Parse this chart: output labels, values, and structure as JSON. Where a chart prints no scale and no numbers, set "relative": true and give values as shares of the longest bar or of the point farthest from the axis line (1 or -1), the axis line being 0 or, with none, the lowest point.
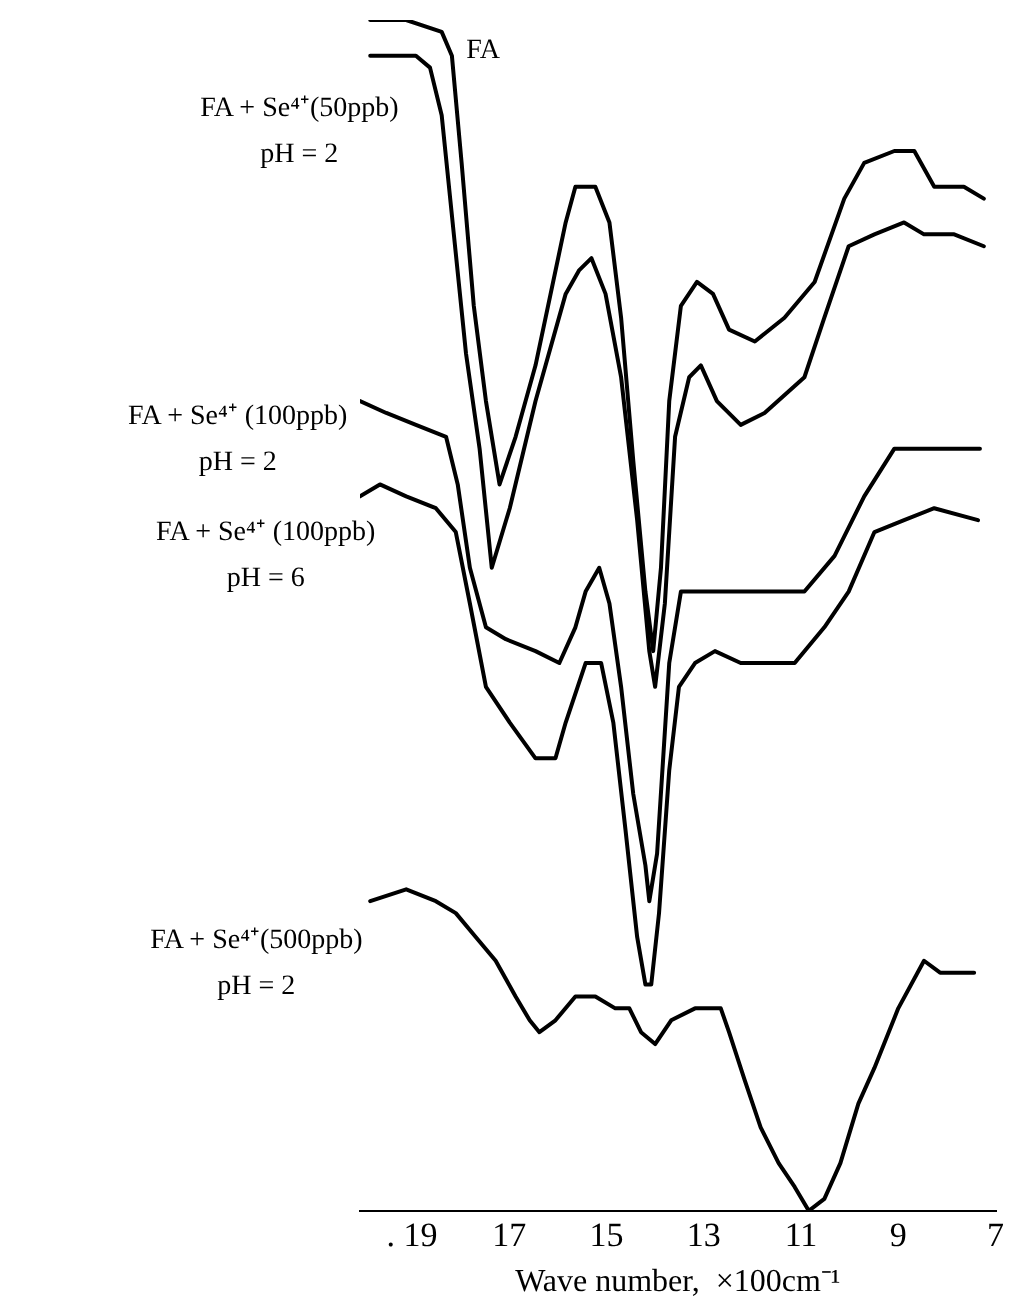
{
  "chart_data": {
    "type": "line",
    "xlabel": "Wave number,  ×100cm⁻¹",
    "relative": true,
    "xlim": [
      20.07,
      7
    ],
    "xticks": [
      {
        "value": 19,
        "label": ". 19"
      },
      17,
      15,
      13,
      11,
      9,
      7
    ],
    "grid": false,
    "legend": false,
    "marker": "none",
    "line_style": "solid",
    "series": [
      {
        "name": "FA",
        "color": "#000000",
        "x": [
          19.86,
          19.12,
          18.39,
          18.18,
          17.98,
          17.73,
          17.48,
          17.2,
          16.87,
          16.46,
          15.84,
          15.64,
          15.23,
          14.94,
          14.7,
          14.45,
          14.2,
          14.04,
          13.88,
          13.71,
          13.47,
          13.14,
          12.81,
          12.48,
          11.95,
          11.34,
          10.72,
          10.11,
          9.7,
          9.08,
          8.67,
          8.26,
          7.65,
          7.24
        ],
        "values": [
          1.0,
          1.0,
          0.99,
          0.97,
          0.88,
          0.76,
          0.68,
          0.61,
          0.65,
          0.71,
          0.83,
          0.86,
          0.86,
          0.83,
          0.75,
          0.63,
          0.52,
          0.47,
          0.54,
          0.68,
          0.76,
          0.78,
          0.77,
          0.74,
          0.73,
          0.75,
          0.78,
          0.85,
          0.88,
          0.89,
          0.89,
          0.86,
          0.86,
          0.85
        ]
      },
      {
        "name": "FA + Se⁴⁺(50ppb)\npH = 2",
        "color": "#000000",
        "x": [
          19.86,
          18.92,
          18.63,
          18.39,
          18.14,
          17.89,
          17.61,
          17.36,
          16.99,
          16.46,
          15.84,
          15.56,
          15.31,
          15.02,
          14.7,
          14.37,
          14.12,
          14.0,
          13.8,
          13.59,
          13.3,
          13.06,
          12.73,
          12.24,
          11.75,
          10.93,
          10.52,
          10.02,
          9.49,
          8.88,
          8.47,
          7.85,
          7.24
        ],
        "values": [
          0.97,
          0.97,
          0.96,
          0.92,
          0.82,
          0.72,
          0.64,
          0.54,
          0.59,
          0.68,
          0.77,
          0.79,
          0.8,
          0.77,
          0.7,
          0.58,
          0.47,
          0.44,
          0.51,
          0.65,
          0.7,
          0.71,
          0.68,
          0.66,
          0.67,
          0.7,
          0.75,
          0.81,
          0.82,
          0.83,
          0.82,
          0.82,
          0.81
        ]
      },
      {
        "name": "FA + Se⁴⁺ (100ppb)\npH = 2",
        "color": "#000000",
        "x": [
          20.07,
          19.53,
          18.92,
          18.3,
          18.06,
          17.81,
          17.48,
          17.07,
          16.46,
          15.97,
          15.64,
          15.43,
          15.15,
          14.94,
          14.7,
          14.45,
          14.2,
          14.12,
          13.96,
          13.71,
          13.47,
          12.98,
          12.36,
          11.75,
          10.93,
          10.31,
          9.7,
          9.08,
          8.47,
          7.85,
          7.32
        ],
        "values": [
          0.68,
          0.67,
          0.66,
          0.65,
          0.61,
          0.54,
          0.49,
          0.48,
          0.47,
          0.46,
          0.49,
          0.52,
          0.54,
          0.51,
          0.44,
          0.35,
          0.29,
          0.26,
          0.3,
          0.46,
          0.52,
          0.52,
          0.52,
          0.52,
          0.52,
          0.55,
          0.6,
          0.64,
          0.64,
          0.64,
          0.64
        ]
      },
      {
        "name": "FA + Se⁴⁺ (100ppb)\npH = 6",
        "color": "#000000",
        "x": [
          20.07,
          19.66,
          19.12,
          18.51,
          18.1,
          17.81,
          17.48,
          16.99,
          16.46,
          16.05,
          15.84,
          15.43,
          15.11,
          14.86,
          14.61,
          14.37,
          14.2,
          14.08,
          13.92,
          13.71,
          13.51,
          13.18,
          12.77,
          12.24,
          11.75,
          11.13,
          10.52,
          10.02,
          9.49,
          8.88,
          8.26,
          7.36
        ],
        "values": [
          0.6,
          0.61,
          0.6,
          0.59,
          0.57,
          0.51,
          0.44,
          0.41,
          0.38,
          0.38,
          0.41,
          0.46,
          0.46,
          0.41,
          0.32,
          0.23,
          0.19,
          0.19,
          0.25,
          0.37,
          0.44,
          0.46,
          0.47,
          0.46,
          0.46,
          0.46,
          0.49,
          0.52,
          0.57,
          0.58,
          0.59,
          0.58
        ]
      },
      {
        "name": "FA + Se⁴⁺(500ppb)\npH = 2",
        "color": "#000000",
        "x": [
          19.86,
          19.12,
          18.51,
          18.1,
          17.69,
          17.28,
          16.87,
          16.58,
          16.38,
          16.05,
          15.64,
          15.23,
          14.82,
          14.53,
          14.29,
          14.0,
          13.67,
          13.18,
          12.65,
          12.48,
          12.16,
          11.83,
          11.46,
          11.13,
          10.84,
          10.52,
          10.19,
          9.82,
          9.49,
          9.0,
          8.47,
          8.14,
          7.85,
          7.44
        ],
        "values": [
          0.26,
          0.27,
          0.26,
          0.25,
          0.23,
          0.21,
          0.18,
          0.16,
          0.15,
          0.16,
          0.18,
          0.18,
          0.17,
          0.17,
          0.15,
          0.14,
          0.16,
          0.17,
          0.17,
          0.15,
          0.11,
          0.07,
          0.04,
          0.02,
          0.0,
          0.01,
          0.04,
          0.09,
          0.12,
          0.17,
          0.21,
          0.2,
          0.2,
          0.2
        ]
      }
    ]
  }
}
